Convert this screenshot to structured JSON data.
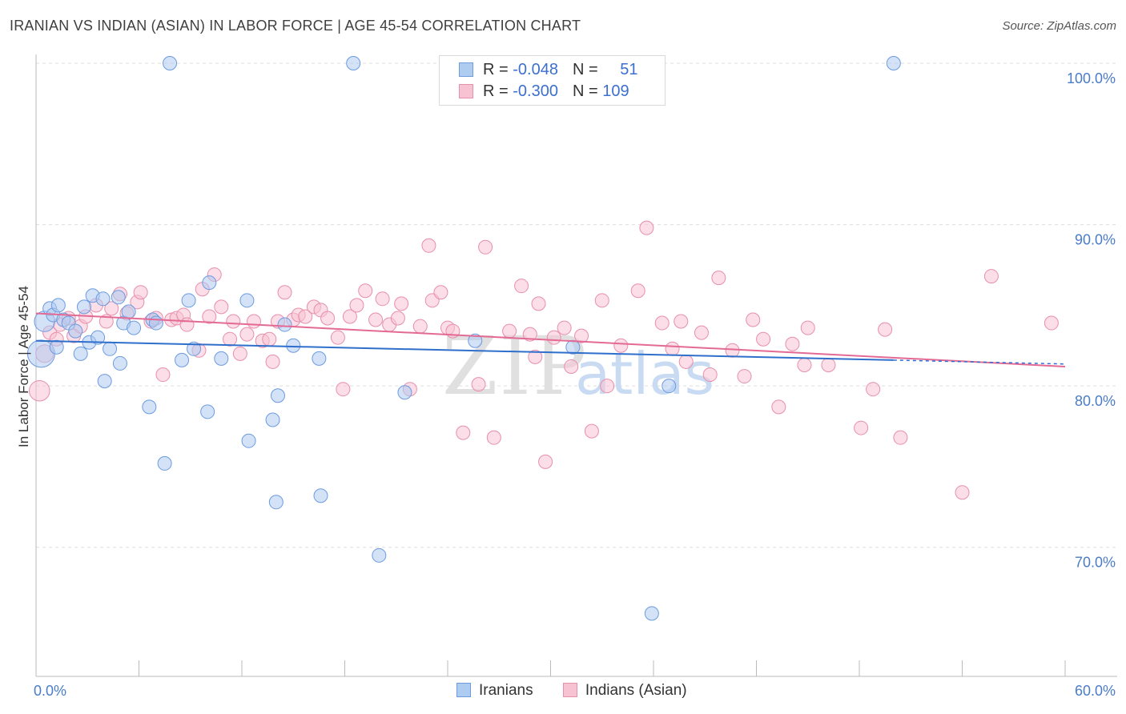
{
  "title": "IRANIAN VS INDIAN (ASIAN) IN LABOR FORCE | AGE 45-54 CORRELATION CHART",
  "source": "Source: ZipAtlas.com",
  "watermark": {
    "zip": "ZIP",
    "atlas": "atlas"
  },
  "legend": {
    "rows": [
      {
        "r_label": "R = ",
        "r_value": "-0.048",
        "n_label": "N = ",
        "n_value": "51"
      },
      {
        "r_label": "R = ",
        "r_value": "-0.300",
        "n_label": "N = ",
        "n_value": "109"
      }
    ]
  },
  "bottom_legend": [
    "Iranians",
    "Indians (Asian)"
  ],
  "chart_data": {
    "type": "scatter",
    "title": "IRANIAN VS INDIAN (ASIAN) IN LABOR FORCE | AGE 45-54 CORRELATION CHART",
    "ylabel": "In Labor Force | Age 45-54",
    "xlabel": "",
    "xlim": [
      0,
      60
    ],
    "ylim": [
      62,
      100
    ],
    "x_tick_labels": [
      "0.0%",
      "60.0%"
    ],
    "y_ticks": [
      70,
      80,
      90,
      100
    ],
    "y_tick_labels": [
      "70.0%",
      "80.0%",
      "90.0%",
      "100.0%"
    ],
    "grid": true,
    "colors": {
      "iranians_fill": "#aecbf0",
      "iranians_stroke": "#6c9be0",
      "iranians_line": "#2f6fcc",
      "indians_fill": "#f7c3d3",
      "indians_stroke": "#e88fab",
      "indians_line": "#e36a95",
      "grid": "#dddddd",
      "axis": "#bbbbbb",
      "tick_text": "#4a7cc9"
    },
    "series": [
      {
        "name": "Iranians",
        "r": -0.048,
        "n": 51,
        "trend": {
          "x": [
            0,
            50
          ],
          "y": [
            82.8,
            81.6
          ]
        },
        "points": [
          [
            0.5,
            84.0,
            1.5
          ],
          [
            0.3,
            82.0,
            2.0
          ],
          [
            0.8,
            84.8,
            1
          ],
          [
            1.0,
            84.4,
            1
          ],
          [
            1.2,
            82.4,
            1
          ],
          [
            1.3,
            85.0,
            1
          ],
          [
            1.6,
            84.1,
            1
          ],
          [
            1.9,
            83.9,
            1
          ],
          [
            2.3,
            83.4,
            1
          ],
          [
            2.6,
            82.0,
            1
          ],
          [
            2.8,
            84.9,
            1
          ],
          [
            3.1,
            82.7,
            1
          ],
          [
            3.3,
            85.6,
            1
          ],
          [
            3.6,
            83.0,
            1
          ],
          [
            3.9,
            85.4,
            1
          ],
          [
            4.0,
            80.3,
            1
          ],
          [
            4.3,
            82.3,
            1
          ],
          [
            4.8,
            85.5,
            1
          ],
          [
            4.9,
            81.4,
            1
          ],
          [
            5.1,
            83.9,
            1
          ],
          [
            5.4,
            84.6,
            1
          ],
          [
            5.7,
            83.6,
            1
          ],
          [
            6.6,
            78.7,
            1
          ],
          [
            6.8,
            84.1,
            1
          ],
          [
            7.0,
            83.9,
            1
          ],
          [
            7.5,
            75.2,
            1
          ],
          [
            7.8,
            100.0,
            1
          ],
          [
            8.5,
            81.6,
            1
          ],
          [
            8.9,
            85.3,
            1
          ],
          [
            9.2,
            82.3,
            1
          ],
          [
            10.0,
            78.4,
            1
          ],
          [
            10.1,
            86.4,
            1
          ],
          [
            10.8,
            81.7,
            1
          ],
          [
            12.3,
            85.3,
            1
          ],
          [
            12.4,
            76.6,
            1
          ],
          [
            13.8,
            77.9,
            1
          ],
          [
            14.0,
            72.8,
            1
          ],
          [
            14.1,
            79.4,
            1
          ],
          [
            14.5,
            83.8,
            1
          ],
          [
            15.0,
            82.5,
            1
          ],
          [
            16.5,
            81.7,
            1
          ],
          [
            16.6,
            73.2,
            1
          ],
          [
            18.5,
            100.0,
            1
          ],
          [
            20.0,
            69.5,
            1
          ],
          [
            21.5,
            79.6,
            1
          ],
          [
            25.6,
            82.8,
            1
          ],
          [
            31.3,
            82.4,
            1
          ],
          [
            35.9,
            65.9,
            1
          ],
          [
            36.9,
            80.0,
            1
          ],
          [
            50.0,
            100.0,
            1
          ]
        ]
      },
      {
        "name": "Indians (Asian)",
        "r": -0.3,
        "n": 109,
        "trend": {
          "x": [
            0,
            60
          ],
          "y": [
            84.5,
            81.2
          ]
        },
        "points": [
          [
            0.2,
            79.7,
            1.5
          ],
          [
            0.5,
            82.0,
            1.3
          ],
          [
            0.8,
            83.3,
            1
          ],
          [
            1.2,
            82.9,
            1
          ],
          [
            1.4,
            83.8,
            1
          ],
          [
            1.9,
            84.2,
            1
          ],
          [
            2.2,
            83.1,
            1
          ],
          [
            2.6,
            83.7,
            1
          ],
          [
            2.9,
            84.3,
            1
          ],
          [
            3.5,
            85.0,
            1
          ],
          [
            4.1,
            84.0,
            1
          ],
          [
            4.4,
            84.8,
            1
          ],
          [
            4.9,
            85.7,
            1
          ],
          [
            5.3,
            84.5,
            1
          ],
          [
            5.9,
            85.2,
            1
          ],
          [
            6.1,
            85.8,
            1
          ],
          [
            6.7,
            84.0,
            1
          ],
          [
            7.0,
            84.2,
            1
          ],
          [
            7.4,
            80.7,
            1
          ],
          [
            7.9,
            84.1,
            1
          ],
          [
            8.2,
            84.2,
            1
          ],
          [
            8.6,
            84.4,
            1
          ],
          [
            8.8,
            83.8,
            1
          ],
          [
            9.5,
            82.2,
            1
          ],
          [
            9.7,
            86.0,
            1
          ],
          [
            10.1,
            84.3,
            1
          ],
          [
            10.4,
            86.9,
            1
          ],
          [
            10.8,
            84.9,
            1
          ],
          [
            11.3,
            82.9,
            1
          ],
          [
            11.5,
            84.0,
            1
          ],
          [
            11.9,
            82.0,
            1
          ],
          [
            12.3,
            83.2,
            1
          ],
          [
            12.7,
            84.0,
            1
          ],
          [
            13.2,
            82.8,
            1
          ],
          [
            13.6,
            82.9,
            1
          ],
          [
            13.8,
            81.5,
            1
          ],
          [
            14.1,
            84.0,
            1
          ],
          [
            14.5,
            85.8,
            1
          ],
          [
            15.0,
            84.1,
            1
          ],
          [
            15.3,
            84.4,
            1
          ],
          [
            15.7,
            84.3,
            1
          ],
          [
            16.2,
            84.9,
            1
          ],
          [
            16.6,
            84.7,
            1
          ],
          [
            17.0,
            84.2,
            1
          ],
          [
            17.6,
            83.0,
            1
          ],
          [
            17.9,
            79.8,
            1
          ],
          [
            18.3,
            84.3,
            1
          ],
          [
            18.7,
            85.0,
            1
          ],
          [
            19.2,
            85.9,
            1
          ],
          [
            19.8,
            84.1,
            1
          ],
          [
            20.2,
            85.4,
            1
          ],
          [
            20.6,
            83.8,
            1
          ],
          [
            21.1,
            84.2,
            1
          ],
          [
            21.3,
            85.1,
            1
          ],
          [
            21.8,
            79.8,
            1
          ],
          [
            22.4,
            83.7,
            1
          ],
          [
            22.9,
            88.7,
            1
          ],
          [
            23.1,
            85.3,
            1
          ],
          [
            23.6,
            85.8,
            1
          ],
          [
            24.0,
            83.6,
            1
          ],
          [
            24.3,
            83.4,
            1
          ],
          [
            24.9,
            77.1,
            1
          ],
          [
            25.8,
            80.1,
            1
          ],
          [
            26.2,
            88.6,
            1
          ],
          [
            26.7,
            76.8,
            1
          ],
          [
            27.6,
            83.4,
            1
          ],
          [
            28.3,
            86.2,
            1
          ],
          [
            28.8,
            83.2,
            1
          ],
          [
            29.1,
            81.8,
            1
          ],
          [
            29.3,
            85.1,
            1
          ],
          [
            29.7,
            75.3,
            1
          ],
          [
            30.2,
            83.0,
            1
          ],
          [
            30.8,
            83.6,
            1
          ],
          [
            31.2,
            81.2,
            1
          ],
          [
            31.8,
            83.1,
            1
          ],
          [
            32.4,
            77.2,
            1
          ],
          [
            33.0,
            85.3,
            1
          ],
          [
            33.3,
            80.0,
            1
          ],
          [
            34.1,
            82.5,
            1
          ],
          [
            35.1,
            85.9,
            1
          ],
          [
            35.6,
            89.8,
            1
          ],
          [
            36.5,
            83.9,
            1
          ],
          [
            37.1,
            82.3,
            1
          ],
          [
            37.6,
            84.0,
            1
          ],
          [
            37.9,
            81.5,
            1
          ],
          [
            38.8,
            83.3,
            1
          ],
          [
            39.3,
            80.7,
            1
          ],
          [
            39.8,
            86.7,
            1
          ],
          [
            40.6,
            82.2,
            1
          ],
          [
            41.3,
            80.6,
            1
          ],
          [
            41.8,
            84.1,
            1
          ],
          [
            42.4,
            82.9,
            1
          ],
          [
            43.3,
            78.7,
            1
          ],
          [
            44.1,
            82.6,
            1
          ],
          [
            44.8,
            81.3,
            1
          ],
          [
            45.0,
            83.6,
            1
          ],
          [
            46.2,
            81.3,
            1
          ],
          [
            48.1,
            77.4,
            1
          ],
          [
            48.8,
            79.8,
            1
          ],
          [
            49.5,
            83.5,
            1
          ],
          [
            50.4,
            76.8,
            1
          ],
          [
            54.0,
            73.4,
            1
          ],
          [
            55.7,
            86.8,
            1
          ],
          [
            59.2,
            83.9,
            1
          ]
        ]
      }
    ]
  }
}
